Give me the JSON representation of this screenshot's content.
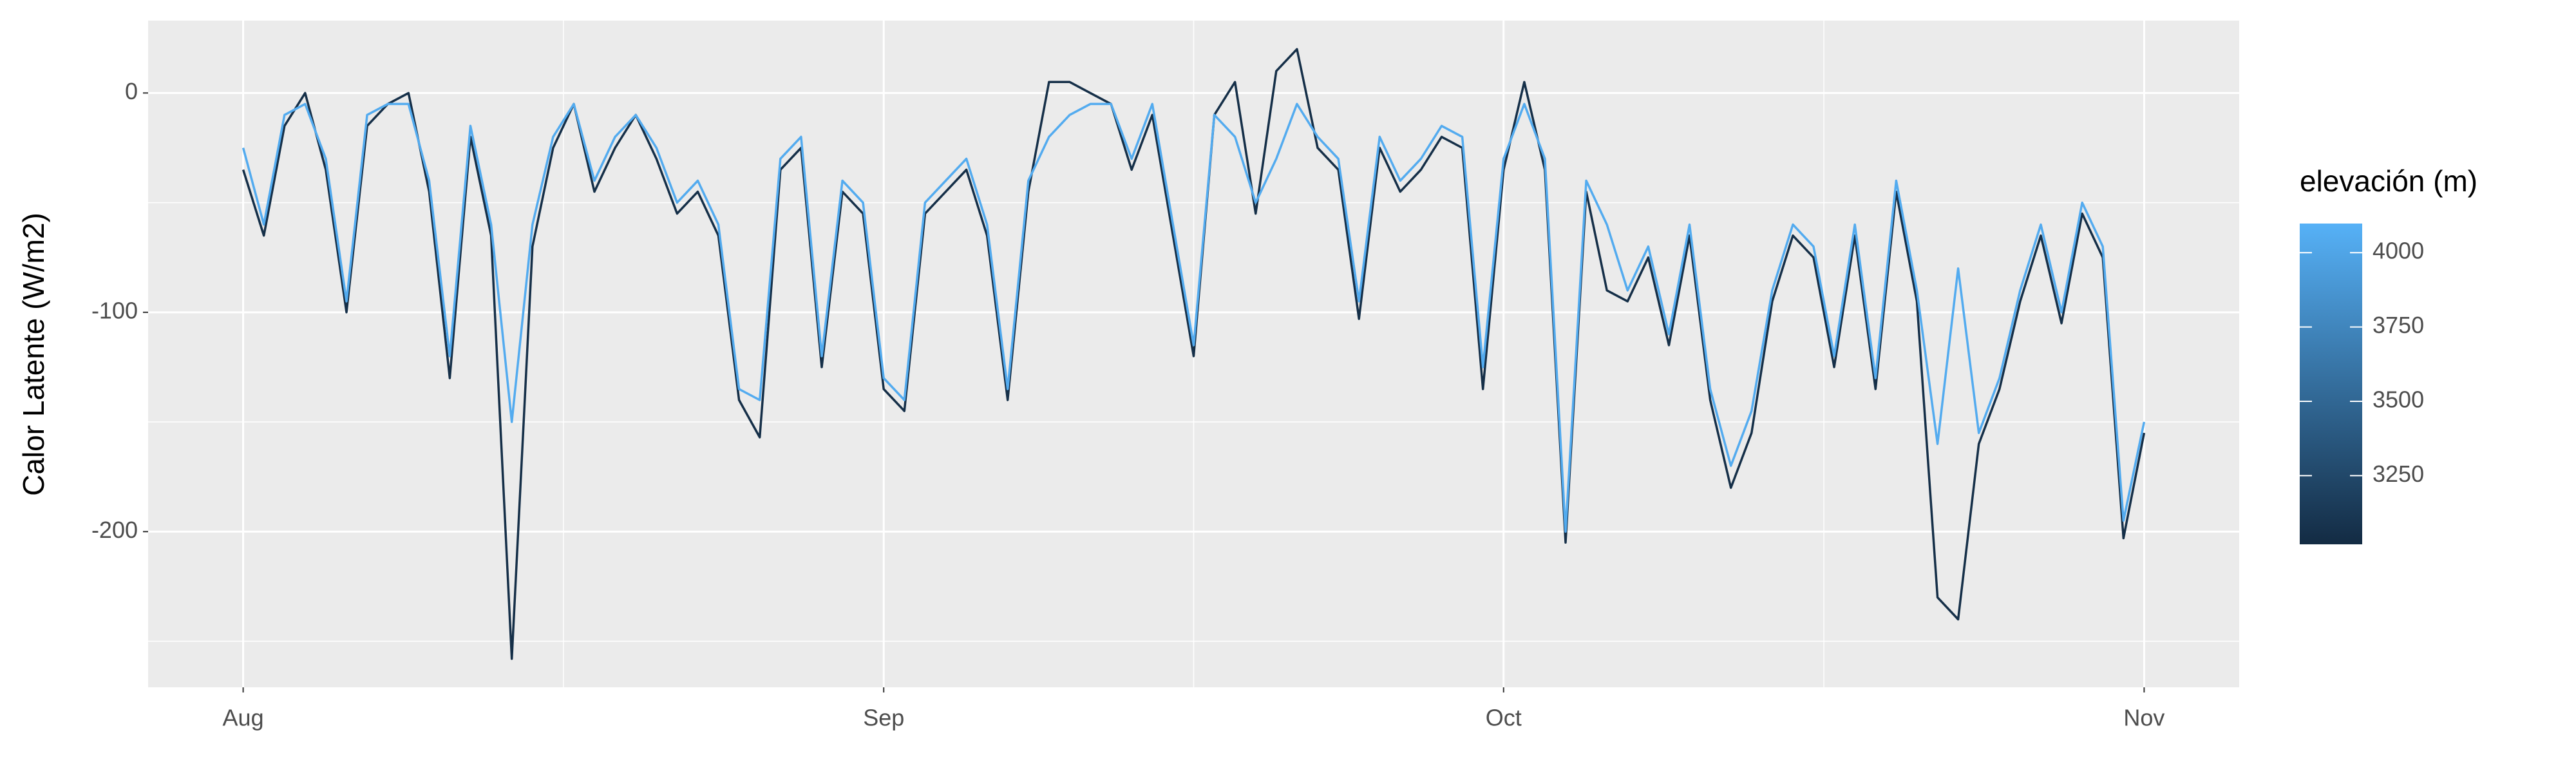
{
  "chart_data": {
    "type": "line",
    "y_label": "Calor Latente (W/m2)",
    "legend_title": "elevación (m)",
    "x": [
      0,
      1,
      2,
      3,
      4,
      5,
      6,
      7,
      8,
      9,
      10,
      11,
      12,
      13,
      14,
      15,
      16,
      17,
      18,
      19,
      20,
      21,
      22,
      23,
      24,
      25,
      26,
      27,
      28,
      29,
      30,
      31,
      32,
      33,
      34,
      35,
      36,
      37,
      38,
      39,
      40,
      41,
      42,
      43,
      44,
      45,
      46,
      47,
      48,
      49,
      50,
      51,
      52,
      53,
      54,
      55,
      56,
      57,
      58,
      59,
      60,
      61,
      62,
      63,
      64,
      65,
      66,
      67,
      68,
      69,
      70,
      71,
      72,
      73,
      74,
      75,
      76,
      77,
      78,
      79,
      80,
      81,
      82,
      83,
      84,
      85,
      86,
      87,
      88,
      89,
      90,
      91,
      92
    ],
    "xlim": [
      -4.6,
      96.6
    ],
    "xticks": [
      {
        "value": 0,
        "label": "Aug"
      },
      {
        "value": 31,
        "label": "Sep"
      },
      {
        "value": 61,
        "label": "Oct"
      },
      {
        "value": 92,
        "label": "Nov"
      }
    ],
    "ylim": [
      -271,
      33
    ],
    "yticks": [
      -200,
      -100,
      0
    ],
    "grid": true,
    "color_scale": {
      "low": "#132B43",
      "high": "#56B1F7",
      "lim": [
        3019,
        4098
      ],
      "ticks": [
        3250,
        3500,
        3750,
        4000
      ]
    },
    "series": [
      {
        "elevation": 3050,
        "values": [
          -35,
          -65,
          -15,
          0,
          -35,
          -100,
          -15,
          -5,
          0,
          -45,
          -130,
          -20,
          -65,
          -258,
          -70,
          -25,
          -5,
          -45,
          -25,
          -10,
          -30,
          -55,
          -45,
          -65,
          -140,
          -157,
          -35,
          -25,
          -125,
          -45,
          -55,
          -135,
          -145,
          -55,
          -45,
          -35,
          -65,
          -140,
          -45,
          5,
          5,
          0,
          -5,
          -35,
          -10,
          -65,
          -120,
          -10,
          5,
          -55,
          10,
          20,
          -25,
          -35,
          -103,
          -25,
          -45,
          -35,
          -20,
          -25,
          -135,
          -35,
          5,
          -35,
          -205,
          -45,
          -90,
          -95,
          -75,
          -115,
          -65,
          -140,
          -180,
          -155,
          -95,
          -65,
          -75,
          -125,
          -65,
          -135,
          -45,
          -95,
          -230,
          -240,
          -160,
          -135,
          -95,
          -65,
          -105,
          -55,
          -75,
          -203,
          -155
        ]
      },
      {
        "elevation": 4050,
        "values": [
          -25,
          -60,
          -10,
          -5,
          -30,
          -95,
          -10,
          -5,
          -5,
          -40,
          -120,
          -15,
          -60,
          -150,
          -60,
          -20,
          -5,
          -40,
          -20,
          -10,
          -25,
          -50,
          -40,
          -60,
          -135,
          -140,
          -30,
          -20,
          -120,
          -40,
          -50,
          -130,
          -140,
          -50,
          -40,
          -30,
          -60,
          -135,
          -40,
          -20,
          -10,
          -5,
          -5,
          -30,
          -5,
          -60,
          -115,
          -10,
          -20,
          -50,
          -30,
          -5,
          -20,
          -30,
          -95,
          -20,
          -40,
          -30,
          -15,
          -20,
          -125,
          -30,
          -5,
          -30,
          -200,
          -40,
          -60,
          -90,
          -70,
          -110,
          -60,
          -135,
          -170,
          -145,
          -90,
          -60,
          -70,
          -120,
          -60,
          -130,
          -40,
          -90,
          -160,
          -80,
          -155,
          -130,
          -90,
          -60,
          -100,
          -50,
          -70,
          -195,
          -150
        ]
      }
    ]
  }
}
